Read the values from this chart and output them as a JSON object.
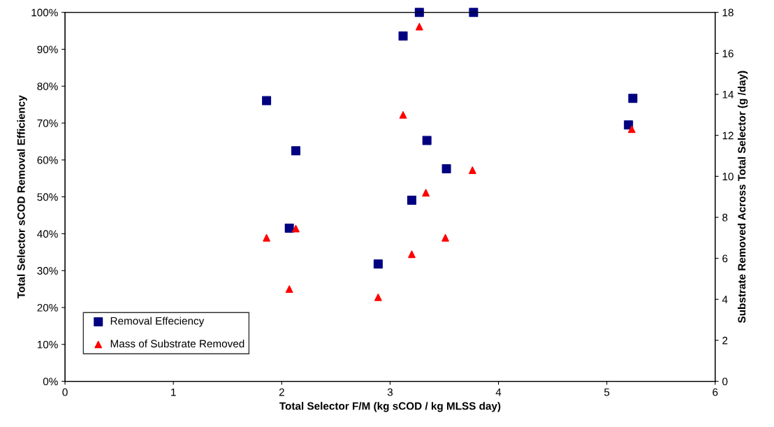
{
  "chart_data": {
    "type": "scatter",
    "xlabel": "Total Selector F/M (kg sCOD / kg MLSS day)",
    "ylabel": "Total Selector sCOD Removal Efficiency",
    "y2label": "Substrate Removed Across Total Selector (g /day)",
    "xlim": [
      0,
      6
    ],
    "xticks": [
      0,
      1,
      2,
      3,
      4,
      5,
      6
    ],
    "ylim": [
      0,
      100
    ],
    "yticks": [
      {
        "value": 0,
        "label": "0%"
      },
      {
        "value": 10,
        "label": "10%"
      },
      {
        "value": 20,
        "label": "20%"
      },
      {
        "value": 30,
        "label": "30%"
      },
      {
        "value": 40,
        "label": "40%"
      },
      {
        "value": 50,
        "label": "50%"
      },
      {
        "value": 60,
        "label": "60%"
      },
      {
        "value": 70,
        "label": "70%"
      },
      {
        "value": 80,
        "label": "80%"
      },
      {
        "value": 90,
        "label": "90%"
      },
      {
        "value": 100,
        "label": "100%"
      }
    ],
    "y2lim": [
      0,
      18
    ],
    "y2ticks": [
      0,
      2,
      4,
      6,
      8,
      10,
      12,
      14,
      16,
      18
    ],
    "grid": false,
    "legend": "bottom left",
    "series": [
      {
        "name": "Removal Effeciency",
        "color": "#000080",
        "marker": "square",
        "x": [
          1.86,
          2.13,
          2.07,
          3.12,
          3.27,
          3.34,
          3.52,
          3.2,
          2.89,
          3.77,
          5.24,
          5.2
        ],
        "values": [
          76.1,
          62.5,
          41.5,
          93.6,
          100,
          65.3,
          57.6,
          49.1,
          31.8,
          100,
          76.7,
          69.5
        ]
      },
      {
        "name": "Mass of Substrate Removed",
        "color": "#ff0000",
        "marker": "triangle",
        "axis": "y2",
        "x": [
          1.86,
          2.13,
          2.07,
          2.89,
          3.27,
          3.12,
          3.33,
          3.2,
          3.51,
          3.76,
          5.23
        ],
        "values": [
          7.0,
          7.45,
          4.5,
          4.1,
          17.3,
          13.0,
          9.2,
          6.2,
          7.0,
          10.3,
          12.3
        ]
      }
    ]
  }
}
